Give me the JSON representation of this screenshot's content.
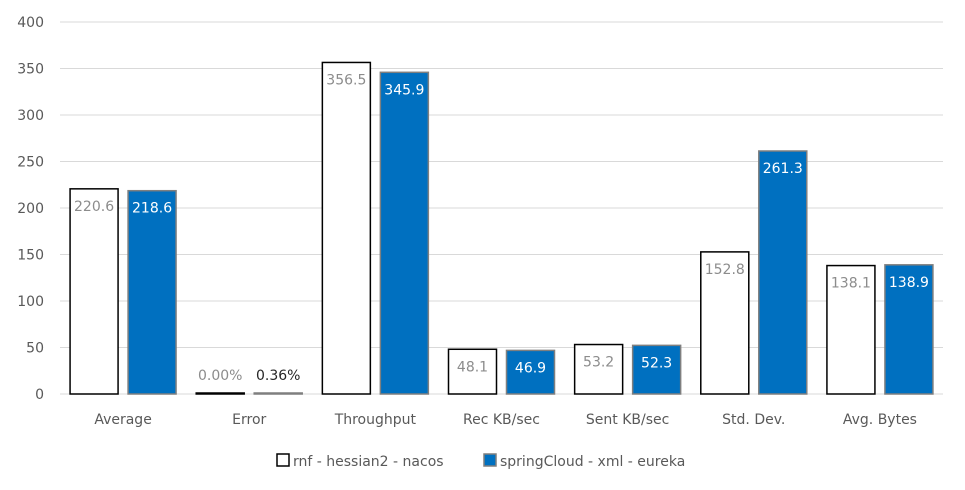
{
  "chart_data": {
    "type": "bar",
    "categories": [
      "Average",
      "Error",
      "Throughput",
      "Rec KB/sec",
      "Sent KB/sec",
      "Std. Dev.",
      "Avg. Bytes"
    ],
    "series": [
      {
        "name": "rnf - hessian2 - nacos",
        "values": [
          220.6,
          0.0,
          356.5,
          48.1,
          53.2,
          152.8,
          138.1
        ],
        "data_labels": [
          "220.6",
          "0.00%",
          "356.5",
          "48.1",
          "53.2",
          "152.8",
          "138.1"
        ],
        "fill": "#ffffff",
        "stroke": "#000000",
        "label_color": "#8c8c8c"
      },
      {
        "name": "springCloud - xml - eureka",
        "values": [
          218.6,
          0.36,
          345.9,
          46.9,
          52.3,
          261.3,
          138.9
        ],
        "data_labels": [
          "218.6",
          "0.36%",
          "345.9",
          "46.9",
          "52.3",
          "261.3",
          "138.9"
        ],
        "fill": "#0070c0",
        "stroke": "#7f7f7f",
        "label_color": "#ffffff"
      }
    ],
    "y_ticks": [
      "0",
      "50",
      "100",
      "150",
      "200",
      "250",
      "300",
      "350",
      "400"
    ],
    "ylim": [
      0,
      400
    ],
    "grid": true,
    "legend_position": "bottom",
    "title": "",
    "xlabel": "",
    "ylabel": ""
  }
}
